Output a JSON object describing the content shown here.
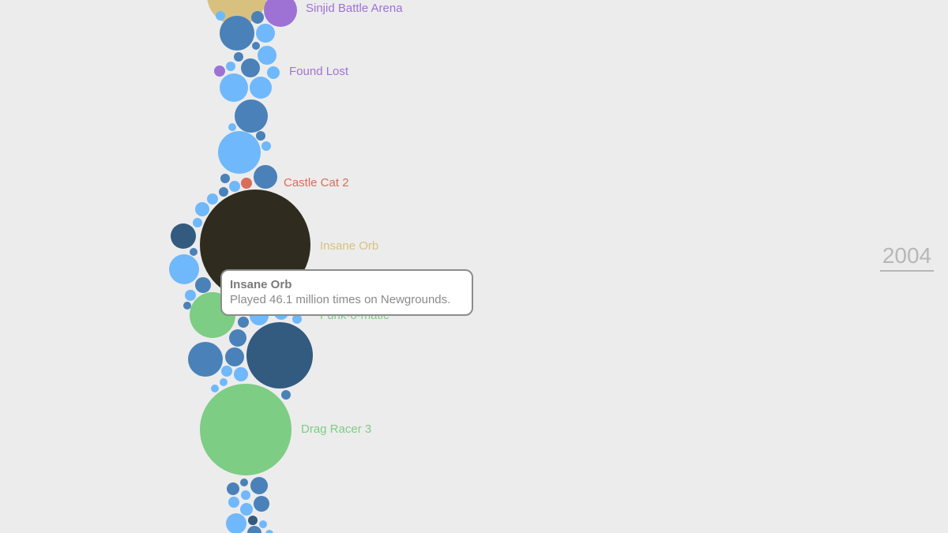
{
  "year": "2004",
  "tooltip": {
    "title": "Insane Orb",
    "description": "Played 46.1 million times on Newgrounds."
  },
  "colors": {
    "background": "#ececec",
    "light_blue": "#6fb8fb",
    "mid_blue": "#4a81b8",
    "dark_blue": "#335a7f",
    "purple": "#9d72d4",
    "red": "#da6c5c",
    "tan": "#d8c17f",
    "green": "#7dcd85",
    "dark": "#2f2c1f"
  },
  "chart_data": {
    "type": "bubble",
    "title": "",
    "year": "2004",
    "labeled_games": [
      {
        "name": "Sinjid Battle Arena",
        "color": "#9d72d4"
      },
      {
        "name": "Found Lost",
        "color": "#9d72d4"
      },
      {
        "name": "Castle Cat 2",
        "color": "#da6c5c"
      },
      {
        "name": "Insane Orb",
        "color": "#d8c17f",
        "plays_millions": 46.1
      },
      {
        "name": "Funk-o-matic",
        "color": "#7dcd85"
      },
      {
        "name": "Drag Racer 3",
        "color": "#7dcd85"
      }
    ]
  }
}
